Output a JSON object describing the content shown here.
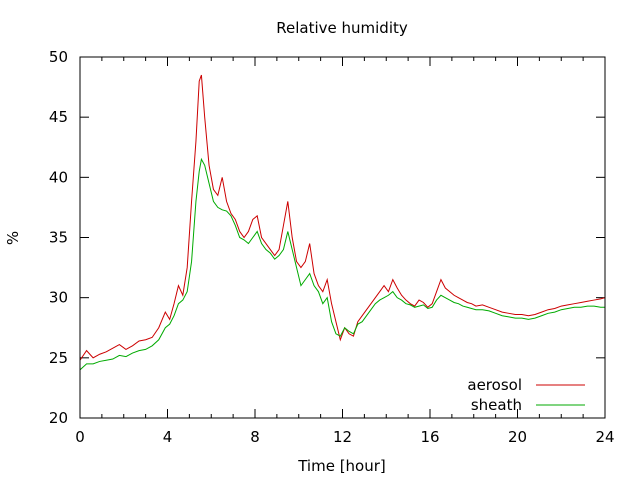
{
  "chart_data": {
    "type": "line",
    "title": "Relative humidity",
    "xlabel": "Time [hour]",
    "ylabel": "%",
    "xlim": [
      0,
      24
    ],
    "ylim": [
      20,
      50
    ],
    "xticks": [
      0,
      4,
      8,
      12,
      16,
      20,
      24
    ],
    "yticks": [
      20,
      25,
      30,
      35,
      40,
      45,
      50
    ],
    "grid": false,
    "legend_position": "bottom-right",
    "series": [
      {
        "name": "aerosol",
        "color": "#cc0000",
        "x": [
          0,
          0.3,
          0.6,
          0.9,
          1.2,
          1.5,
          1.8,
          2.1,
          2.4,
          2.7,
          3.0,
          3.3,
          3.6,
          3.9,
          4.1,
          4.3,
          4.5,
          4.7,
          4.9,
          5.1,
          5.3,
          5.45,
          5.55,
          5.7,
          5.9,
          6.1,
          6.3,
          6.5,
          6.7,
          6.9,
          7.1,
          7.3,
          7.5,
          7.7,
          7.9,
          8.1,
          8.3,
          8.5,
          8.7,
          8.9,
          9.1,
          9.3,
          9.5,
          9.7,
          9.9,
          10.1,
          10.3,
          10.5,
          10.7,
          10.9,
          11.1,
          11.3,
          11.5,
          11.7,
          11.9,
          12.1,
          12.3,
          12.5,
          12.7,
          12.9,
          13.1,
          13.3,
          13.5,
          13.7,
          13.9,
          14.1,
          14.3,
          14.5,
          14.7,
          14.9,
          15.1,
          15.3,
          15.5,
          15.7,
          15.9,
          16.1,
          16.3,
          16.5,
          16.7,
          16.9,
          17.1,
          17.3,
          17.5,
          17.7,
          17.9,
          18.1,
          18.4,
          18.7,
          19.0,
          19.3,
          19.6,
          19.9,
          20.2,
          20.5,
          20.8,
          21.1,
          21.4,
          21.7,
          22.0,
          22.3,
          22.6,
          22.9,
          23.2,
          23.5,
          23.8,
          24.0
        ],
        "values": [
          24.8,
          25.6,
          25.0,
          25.3,
          25.5,
          25.8,
          26.1,
          25.7,
          26.0,
          26.4,
          26.5,
          26.7,
          27.5,
          28.8,
          28.2,
          29.5,
          31.0,
          30.2,
          32.5,
          38.0,
          43.0,
          48.0,
          48.5,
          45.0,
          41.0,
          39.0,
          38.5,
          40.0,
          38.0,
          37.0,
          36.5,
          35.5,
          35.0,
          35.5,
          36.5,
          36.8,
          35.0,
          34.5,
          34.0,
          33.5,
          34.0,
          36.0,
          38.0,
          35.0,
          33.0,
          32.5,
          33.0,
          34.5,
          32.0,
          31.0,
          30.5,
          31.5,
          29.5,
          28.0,
          26.5,
          27.5,
          27.0,
          26.8,
          28.0,
          28.5,
          29.0,
          29.5,
          30.0,
          30.5,
          31.0,
          30.5,
          31.5,
          30.8,
          30.2,
          29.8,
          29.5,
          29.3,
          29.8,
          29.6,
          29.2,
          29.5,
          30.5,
          31.5,
          30.8,
          30.5,
          30.2,
          30.0,
          29.8,
          29.6,
          29.5,
          29.3,
          29.4,
          29.2,
          29.0,
          28.8,
          28.7,
          28.6,
          28.6,
          28.5,
          28.6,
          28.8,
          29.0,
          29.1,
          29.3,
          29.4,
          29.5,
          29.6,
          29.7,
          29.8,
          29.9,
          30.0
        ]
      },
      {
        "name": "sheath",
        "color": "#00aa00",
        "x": [
          0,
          0.3,
          0.6,
          0.9,
          1.2,
          1.5,
          1.8,
          2.1,
          2.4,
          2.7,
          3.0,
          3.3,
          3.6,
          3.9,
          4.1,
          4.3,
          4.5,
          4.7,
          4.9,
          5.1,
          5.3,
          5.45,
          5.55,
          5.7,
          5.9,
          6.1,
          6.3,
          6.5,
          6.7,
          6.9,
          7.1,
          7.3,
          7.5,
          7.7,
          7.9,
          8.1,
          8.3,
          8.5,
          8.7,
          8.9,
          9.1,
          9.3,
          9.5,
          9.7,
          9.9,
          10.1,
          10.3,
          10.5,
          10.7,
          10.9,
          11.1,
          11.3,
          11.5,
          11.7,
          11.9,
          12.1,
          12.3,
          12.5,
          12.7,
          12.9,
          13.1,
          13.3,
          13.5,
          13.7,
          13.9,
          14.1,
          14.3,
          14.5,
          14.7,
          14.9,
          15.1,
          15.3,
          15.5,
          15.7,
          15.9,
          16.1,
          16.3,
          16.5,
          16.7,
          16.9,
          17.1,
          17.3,
          17.5,
          17.7,
          17.9,
          18.1,
          18.4,
          18.7,
          19.0,
          19.3,
          19.6,
          19.9,
          20.2,
          20.5,
          20.8,
          21.1,
          21.4,
          21.7,
          22.0,
          22.3,
          22.6,
          22.9,
          23.2,
          23.5,
          23.8,
          24.0
        ],
        "values": [
          24.0,
          24.5,
          24.5,
          24.7,
          24.8,
          24.9,
          25.2,
          25.1,
          25.4,
          25.6,
          25.7,
          26.0,
          26.5,
          27.5,
          27.8,
          28.5,
          29.5,
          29.8,
          30.5,
          33.0,
          38.0,
          40.5,
          41.5,
          41.0,
          39.5,
          38.0,
          37.5,
          37.3,
          37.2,
          36.8,
          36.0,
          35.0,
          34.8,
          34.5,
          35.0,
          35.5,
          34.5,
          34.0,
          33.7,
          33.2,
          33.5,
          34.0,
          35.5,
          34.0,
          32.5,
          31.0,
          31.5,
          32.0,
          31.0,
          30.5,
          29.5,
          30.0,
          28.0,
          27.0,
          26.8,
          27.5,
          27.2,
          27.0,
          27.8,
          28.0,
          28.5,
          29.0,
          29.5,
          29.8,
          30.0,
          30.2,
          30.5,
          30.0,
          29.8,
          29.5,
          29.4,
          29.2,
          29.3,
          29.4,
          29.1,
          29.2,
          29.8,
          30.2,
          30.0,
          29.8,
          29.6,
          29.5,
          29.3,
          29.2,
          29.1,
          29.0,
          29.0,
          28.9,
          28.7,
          28.5,
          28.4,
          28.3,
          28.3,
          28.2,
          28.3,
          28.5,
          28.7,
          28.8,
          29.0,
          29.1,
          29.2,
          29.2,
          29.3,
          29.3,
          29.2,
          29.2
        ]
      }
    ]
  }
}
